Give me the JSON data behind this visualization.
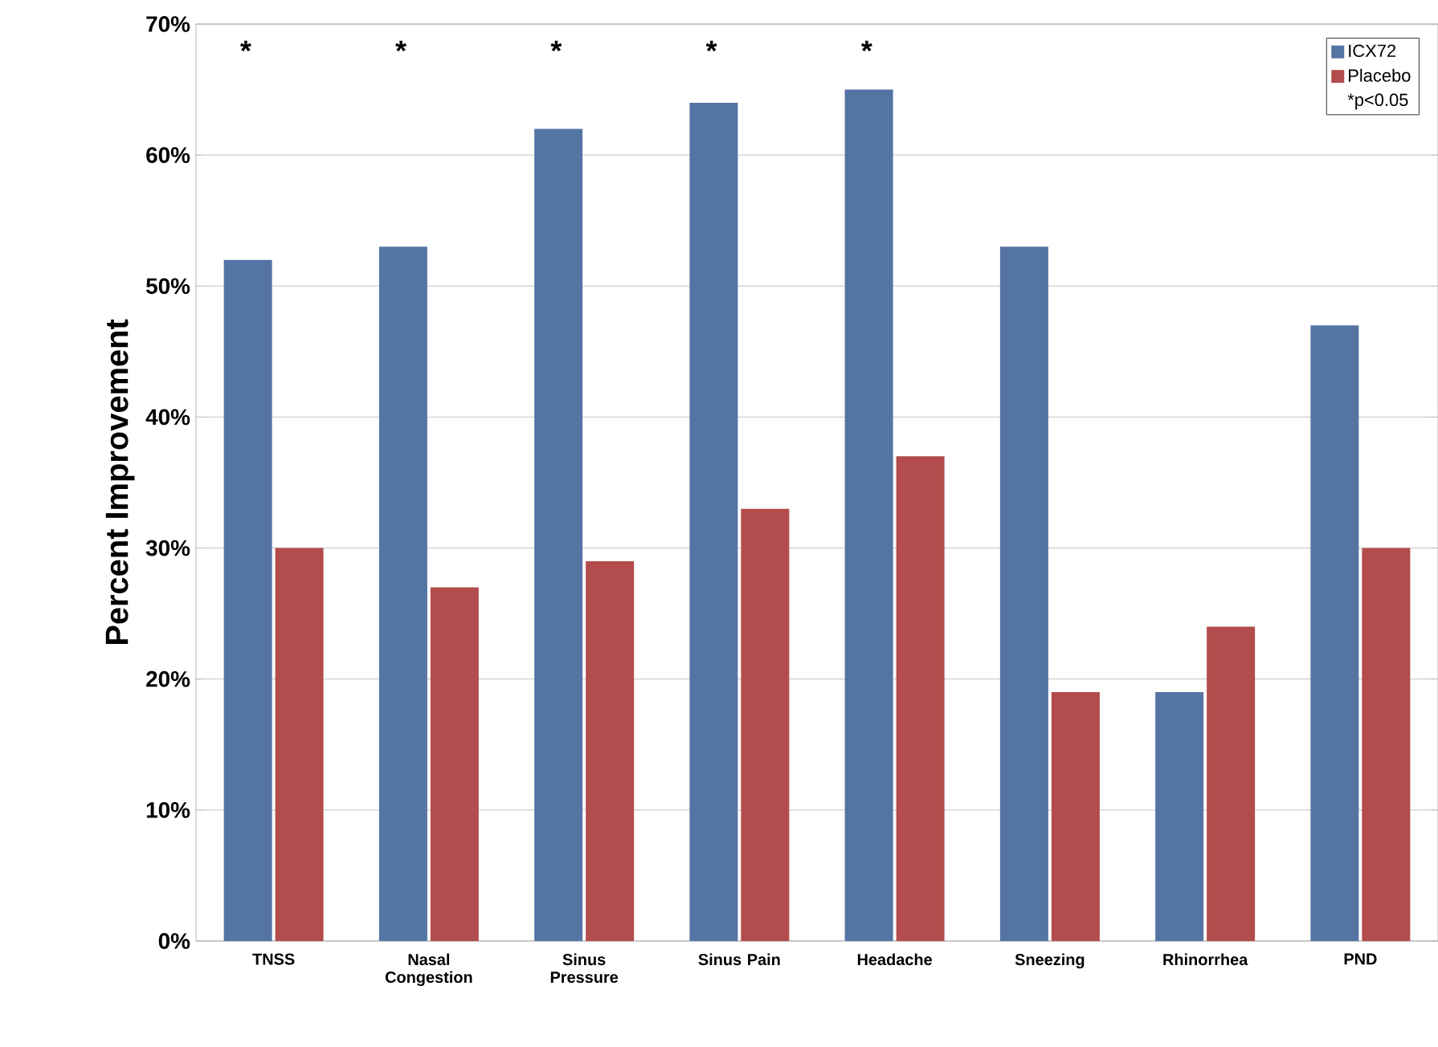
{
  "chart_data": {
    "type": "bar",
    "ylabel": "Percent Improvement",
    "categories": [
      "TNSS",
      "Nasal Congestion",
      "Sinus Pressure",
      "Sinus Pain",
      "Headache",
      "Sneezing",
      "Rhinorrhea",
      "PND"
    ],
    "series": [
      {
        "name": "ICX72",
        "color": "#5474a4",
        "values": [
          52,
          53,
          62,
          64,
          65,
          53,
          19,
          47
        ]
      },
      {
        "name": "Placebo",
        "color": "#b34c4c",
        "values": [
          30,
          27,
          29,
          33,
          37,
          19,
          24,
          30
        ]
      }
    ],
    "ylim": [
      0,
      70
    ],
    "yticks": [
      {
        "value": 0,
        "label": "0%"
      },
      {
        "value": 10,
        "label": "10%"
      },
      {
        "value": 20,
        "label": "20%"
      },
      {
        "value": 30,
        "label": "30%"
      },
      {
        "value": 40,
        "label": "40%"
      },
      {
        "value": 50,
        "label": "50%"
      },
      {
        "value": 60,
        "label": "60%"
      },
      {
        "value": 70,
        "label": "70%"
      }
    ],
    "grid": "y",
    "legend": "top right",
    "annotations": [
      "*",
      "*",
      "*",
      "*",
      "*",
      "*p<0.05"
    ]
  }
}
